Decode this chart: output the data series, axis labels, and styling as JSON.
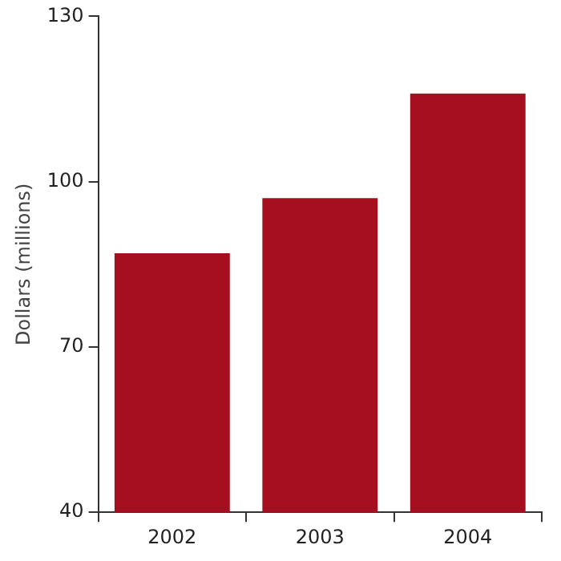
{
  "chart_data": {
    "type": "bar",
    "ylabel": "Dollars (millions)",
    "categories": [
      "2002",
      "2003",
      "2004"
    ],
    "values": [
      87,
      97,
      116
    ],
    "color": "#a50f20",
    "ylim": [
      40,
      130
    ],
    "yticks": [
      40,
      70,
      100,
      130
    ],
    "grid": false,
    "legend": false
  }
}
